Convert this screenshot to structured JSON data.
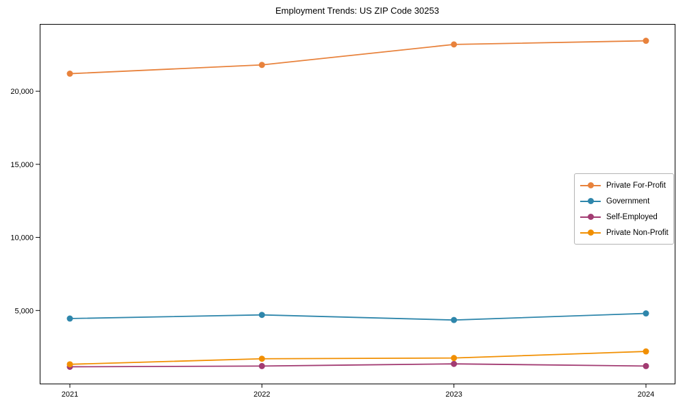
{
  "figure": {
    "background": "#ffffff",
    "axis_color": "#000000",
    "tick_label_color": "#000000",
    "legend_border_color": "#b3b3b3"
  },
  "chart_data": {
    "type": "line",
    "title": "Employment Trends: US ZIP Code 30253",
    "xlabel": "",
    "ylabel": "",
    "categories": [
      "2021",
      "2022",
      "2023",
      "2024"
    ],
    "series": [
      {
        "name": "Private For-Profit",
        "color": "#e8823c",
        "values": [
          21200,
          21800,
          23200,
          23450
        ]
      },
      {
        "name": "Government",
        "color": "#2e86ab",
        "values": [
          4450,
          4700,
          4350,
          4800
        ]
      },
      {
        "name": "Self-Employed",
        "color": "#a23b72",
        "values": [
          1150,
          1200,
          1350,
          1200
        ]
      },
      {
        "name": "Private Non-Profit",
        "color": "#f18f01",
        "values": [
          1320,
          1700,
          1750,
          2200
        ]
      }
    ],
    "ylim": [
      0,
      24600
    ],
    "y_ticks": [
      5000,
      10000,
      15000,
      20000
    ],
    "y_tick_labels": [
      "5,000",
      "10,000",
      "15,000",
      "20,000"
    ],
    "grid": false,
    "legend_position": "center right",
    "marker": "circle",
    "line_width": 1.8,
    "marker_radius": 4.5
  }
}
